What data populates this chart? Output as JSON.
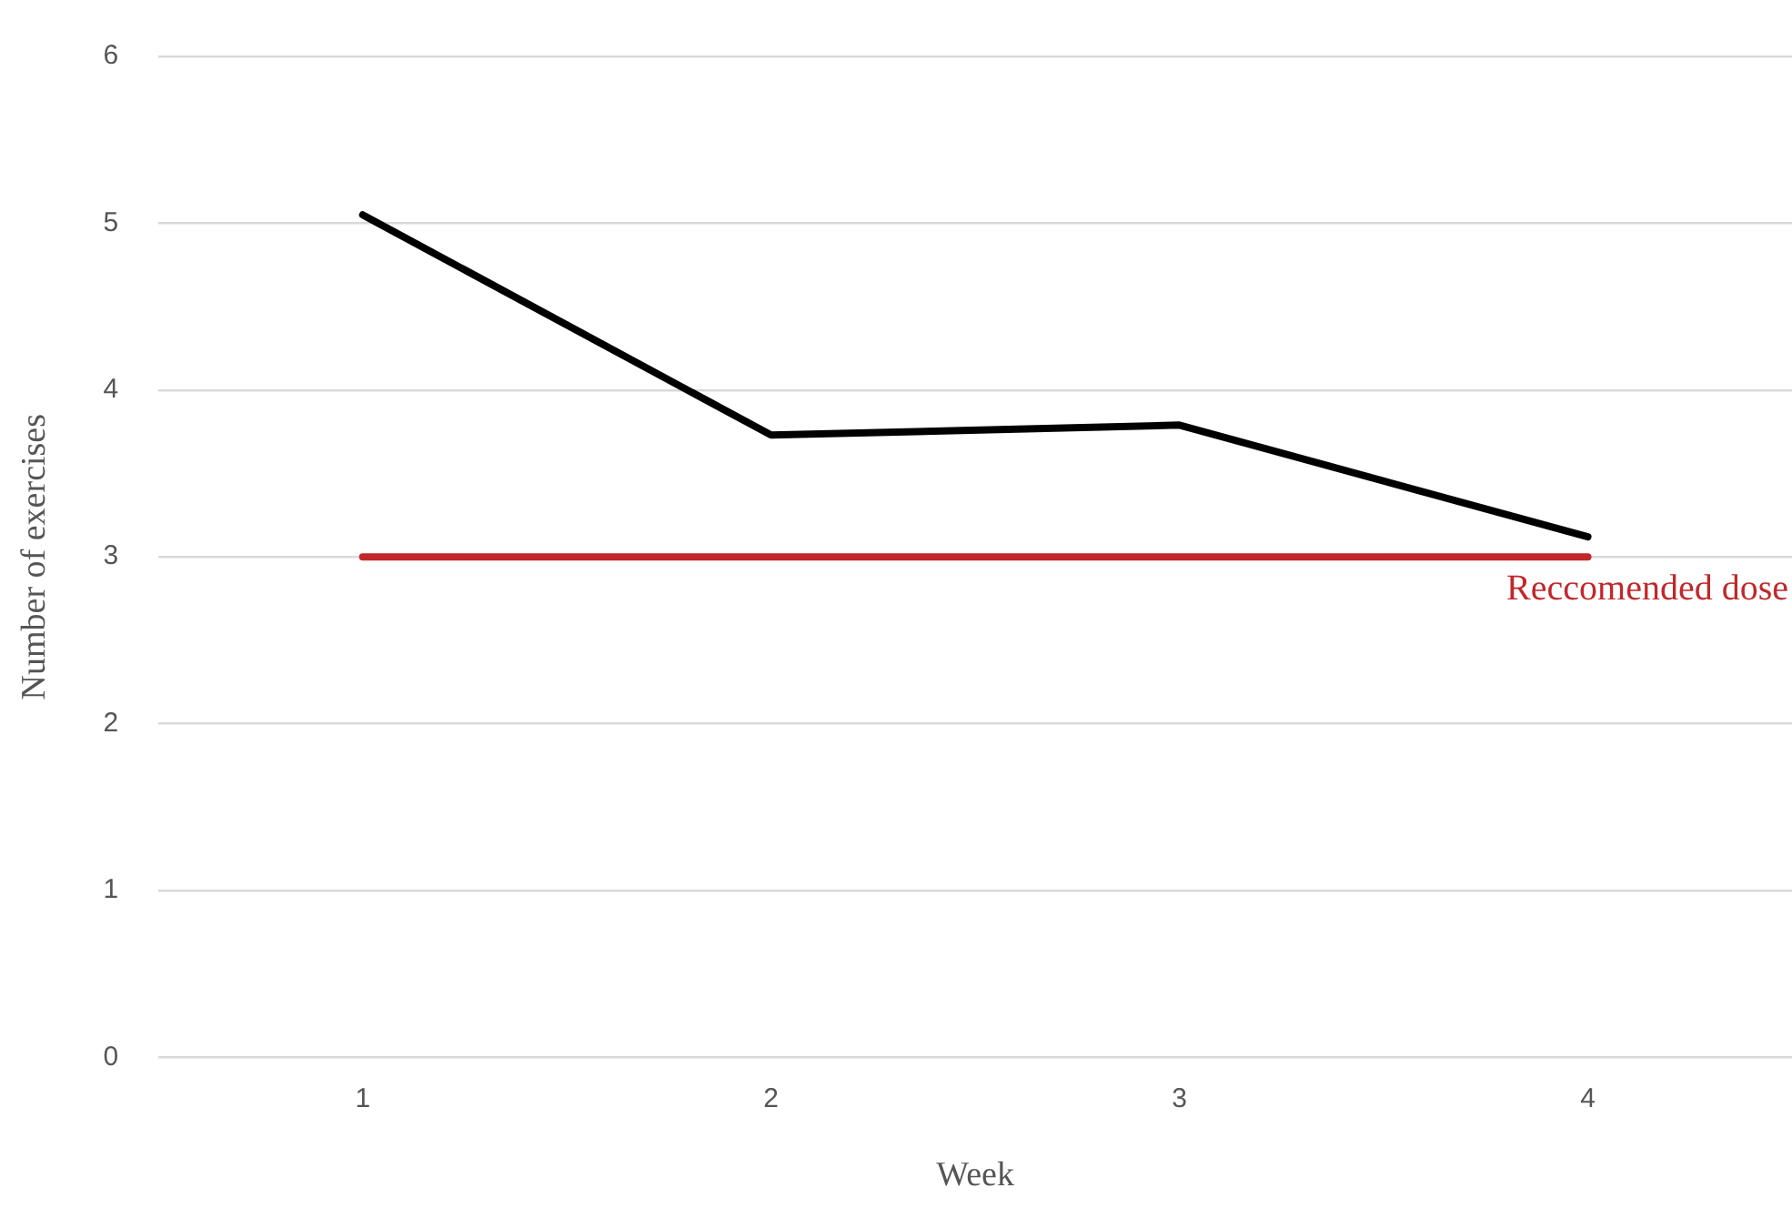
{
  "chart_data": {
    "type": "line",
    "xlabel": "Week",
    "ylabel": "Number of exercises",
    "categories": [
      "1",
      "2",
      "3",
      "4"
    ],
    "series": [
      {
        "color": "#000000",
        "values": [
          5.05,
          3.73,
          3.79,
          3.12
        ]
      },
      {
        "name": "Reccomended dose",
        "color": "#c0282b",
        "values": [
          3,
          3,
          3,
          3
        ]
      }
    ],
    "ylim": [
      0,
      6
    ],
    "yticks": [
      0,
      1,
      2,
      3,
      4,
      5,
      6
    ],
    "grid": "y",
    "legend": false,
    "marker": "none",
    "line_style": "solid"
  }
}
